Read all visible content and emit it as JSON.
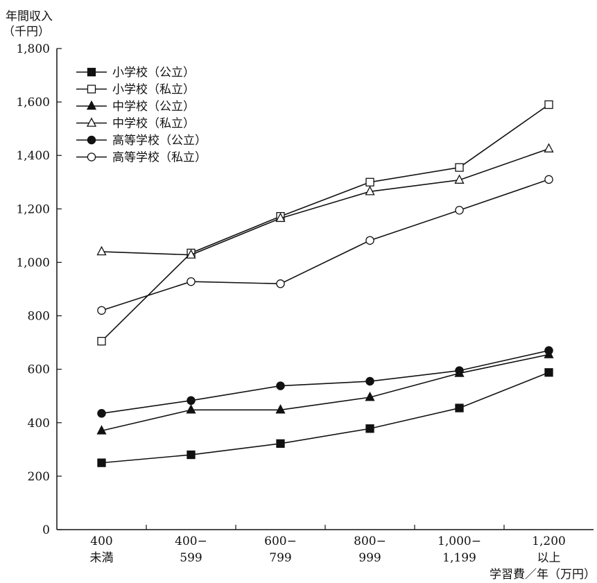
{
  "chart_data": {
    "type": "line",
    "ylabel_lines": [
      "年間収入",
      "（千円）"
    ],
    "xlabel": "学習費／年（万円）",
    "categories": [
      [
        "400",
        "未満"
      ],
      [
        "400−",
        "599"
      ],
      [
        "600−",
        "799"
      ],
      [
        "800−",
        "999"
      ],
      [
        "1,000−",
        "1,199"
      ],
      [
        "1,200",
        "以上"
      ]
    ],
    "ylim": [
      0,
      1800
    ],
    "yticks": [
      "0",
      "200",
      "400",
      "600",
      "800",
      "1,000",
      "1,200",
      "1,400",
      "1,600",
      "1,800"
    ],
    "legend_position": "top-left",
    "series": [
      {
        "name": "小学校（公立）",
        "marker": "square",
        "filled": true,
        "values": [
          250,
          280,
          322,
          378,
          455,
          588
        ]
      },
      {
        "name": "小学校（私立）",
        "marker": "square",
        "filled": false,
        "values": [
          705,
          1035,
          1172,
          1300,
          1355,
          1590
        ]
      },
      {
        "name": "中学校（公立）",
        "marker": "triangle",
        "filled": true,
        "values": [
          370,
          448,
          448,
          495,
          585,
          655
        ]
      },
      {
        "name": "中学校（私立）",
        "marker": "triangle",
        "filled": false,
        "values": [
          1040,
          1028,
          1165,
          1265,
          1308,
          1425
        ]
      },
      {
        "name": "高等学校（公立）",
        "marker": "circle",
        "filled": true,
        "values": [
          435,
          483,
          538,
          555,
          595,
          670
        ]
      },
      {
        "name": "高等学校（私立）",
        "marker": "circle",
        "filled": false,
        "values": [
          820,
          928,
          920,
          1082,
          1195,
          1310
        ]
      }
    ]
  }
}
